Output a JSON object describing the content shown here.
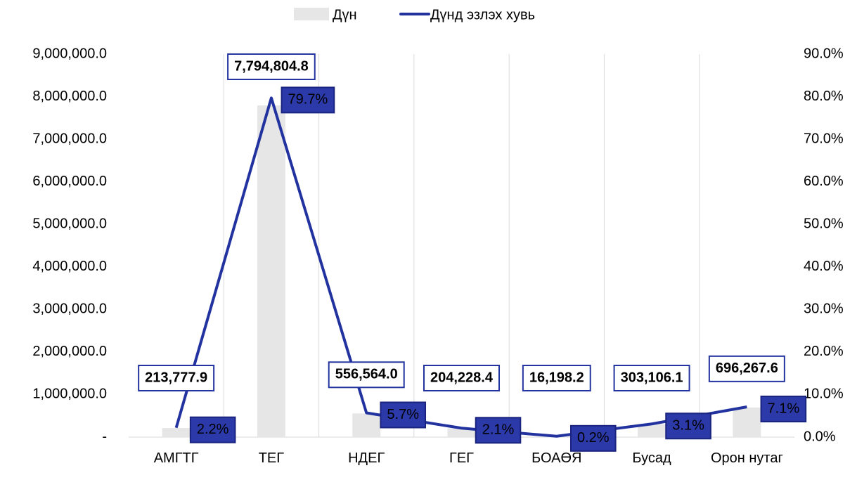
{
  "chart_data": {
    "type": "combo",
    "categories": [
      "АМГТГ",
      "ТЕГ",
      "НДЕГ",
      "ГЕГ",
      "БОАӨЯ",
      "Бусад",
      "Орон нутаг"
    ],
    "series": [
      {
        "name": "Дүн",
        "type": "bar",
        "color": "#e6e6e6",
        "values": [
          213777.9,
          7794804.8,
          556564.0,
          204228.4,
          16198.2,
          303106.1,
          696267.6
        ],
        "value_labels": [
          "213,777.9",
          "7,794,804.8",
          "556,564.0",
          "204,228.4",
          "16,198.2",
          "303,106.1",
          "696,267.6"
        ]
      },
      {
        "name": "Дүнд эзлэх хувь",
        "type": "line",
        "axis": "y2",
        "color": "#2233a0",
        "values": [
          2.2,
          79.7,
          5.7,
          2.1,
          0.2,
          3.1,
          7.1
        ],
        "value_labels": [
          "2.2%",
          "79.7%",
          "5.7%",
          "2.1%",
          "0.2%",
          "3.1%",
          "7.1%"
        ]
      }
    ],
    "ylim": [
      0,
      9000000
    ],
    "yticks": [
      {
        "value": 0,
        "label": "-"
      },
      {
        "value": 1000000,
        "label": "1,000,000.0"
      },
      {
        "value": 2000000,
        "label": "2,000,000.0"
      },
      {
        "value": 3000000,
        "label": "3,000,000.0"
      },
      {
        "value": 4000000,
        "label": "4,000,000.0"
      },
      {
        "value": 5000000,
        "label": "5,000,000.0"
      },
      {
        "value": 6000000,
        "label": "6,000,000.0"
      },
      {
        "value": 7000000,
        "label": "7,000,000.0"
      },
      {
        "value": 8000000,
        "label": "8,000,000.0"
      },
      {
        "value": 9000000,
        "label": "9,000,000.0"
      }
    ],
    "y2lim": [
      0,
      90
    ],
    "y2ticks": [
      {
        "value": 0,
        "label": "0.0%"
      },
      {
        "value": 10,
        "label": "10.0%"
      },
      {
        "value": 20,
        "label": "20.0%"
      },
      {
        "value": 30,
        "label": "30.0%"
      },
      {
        "value": 40,
        "label": "40.0%"
      },
      {
        "value": 50,
        "label": "50.0%"
      },
      {
        "value": 60,
        "label": "60.0%"
      },
      {
        "value": 70,
        "label": "70.0%"
      },
      {
        "value": 80,
        "label": "80.0%"
      },
      {
        "value": 90,
        "label": "90.0%"
      }
    ],
    "grid": true,
    "legend": "top"
  }
}
